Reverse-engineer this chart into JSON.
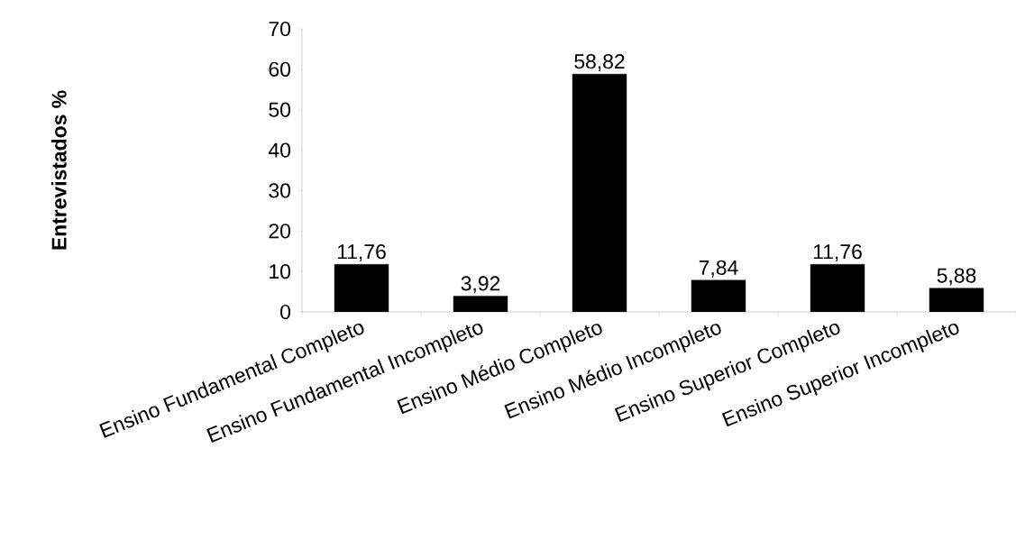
{
  "chart_data": {
    "type": "bar",
    "ylabel": "Entrevistados %",
    "categories": [
      "Ensino Fundamental Completo",
      "Ensino Fundamental Incompleto",
      "Ensino Médio Completo",
      "Ensino Médio Incompleto",
      "Ensino Superior Completo",
      "Ensino Superior Incompleto"
    ],
    "values": [
      11.76,
      3.92,
      58.82,
      7.84,
      11.76,
      5.88
    ],
    "value_labels": [
      "11,76",
      "3,92",
      "58,82",
      "7,84",
      "11,76",
      "5,88"
    ],
    "color": "#000000",
    "ylim": [
      0,
      70
    ],
    "yticks": [
      0,
      10,
      20,
      30,
      40,
      50,
      60,
      70
    ],
    "grid": false
  }
}
